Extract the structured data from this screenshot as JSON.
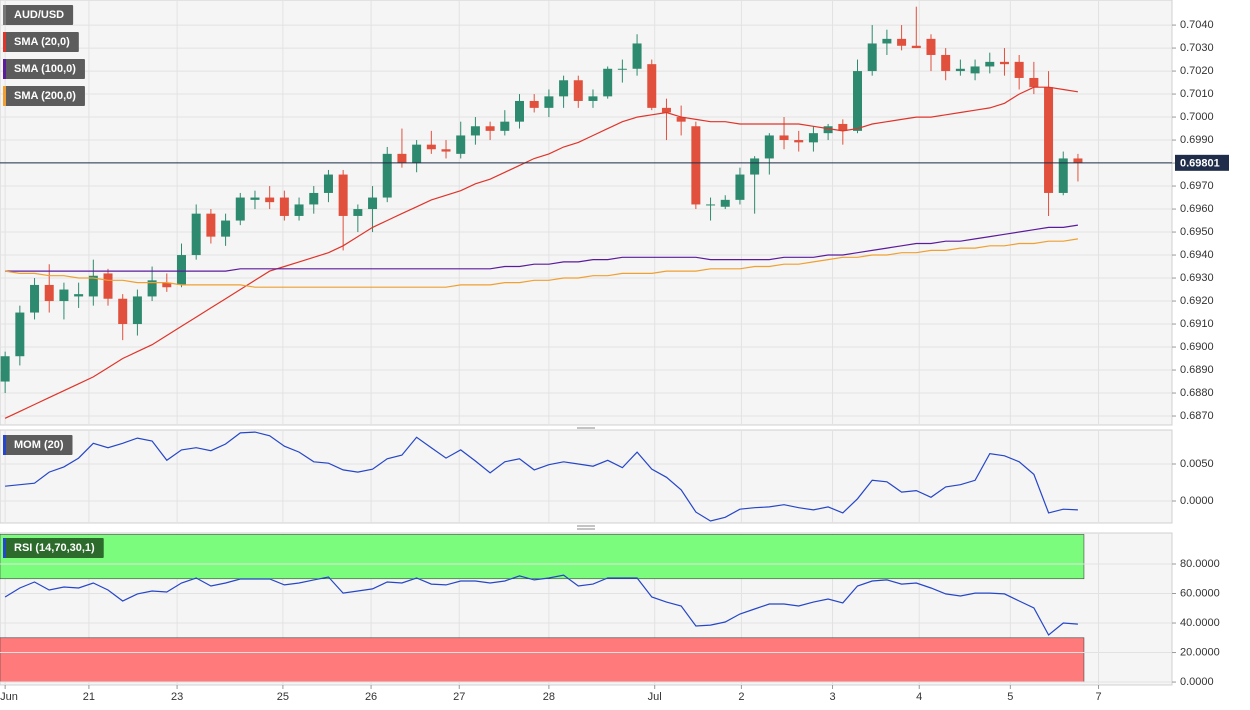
{
  "chart_data": [
    {
      "type": "candlestick",
      "xlim": [
        -0.35,
        79.4
      ],
      "ylim": [
        0.68661,
        0.70509
      ],
      "yticks": [
        {
          "value": 0.687,
          "label": "0.6870"
        },
        {
          "value": 0.688,
          "label": "0.6880"
        },
        {
          "value": 0.689,
          "label": "0.6890"
        },
        {
          "value": 0.69,
          "label": "0.6900"
        },
        {
          "value": 0.691,
          "label": "0.6910"
        },
        {
          "value": 0.692,
          "label": "0.6920"
        },
        {
          "value": 0.693,
          "label": "0.6930"
        },
        {
          "value": 0.694,
          "label": "0.6940"
        },
        {
          "value": 0.695,
          "label": "0.6950"
        },
        {
          "value": 0.696,
          "label": "0.6960"
        },
        {
          "value": 0.697,
          "label": "0.6970"
        },
        {
          "value": 0.698,
          "label": "0.6980"
        },
        {
          "value": 0.699,
          "label": "0.6990"
        },
        {
          "value": 0.7,
          "label": "0.7000"
        },
        {
          "value": 0.701,
          "label": "0.7010"
        },
        {
          "value": 0.702,
          "label": "0.7020"
        },
        {
          "value": 0.703,
          "label": "0.7030"
        },
        {
          "value": 0.704,
          "label": "0.7040"
        }
      ],
      "grid": true,
      "last_price": {
        "value": 0.69801,
        "label": "0.69801"
      },
      "series": [
        {
          "name": "AUD/USD",
          "up_color": "#2e8a6e",
          "down_color": "#e0503c",
          "color": "#777777",
          "open": [
            0.6885,
            0.6896,
            0.6915,
            0.6927,
            0.692,
            0.6922,
            0.6922,
            0.6932,
            0.6921,
            0.691,
            0.6922,
            0.6928,
            0.6927,
            0.694,
            0.6958,
            0.6948,
            0.6955,
            0.6964,
            0.6965,
            0.6965,
            0.6957,
            0.6962,
            0.6967,
            0.6975,
            0.6957,
            0.696,
            0.6965,
            0.6984,
            0.698,
            0.6988,
            0.6986,
            0.6984,
            0.6992,
            0.6996,
            0.6994,
            0.6998,
            0.7007,
            0.7004,
            0.7009,
            0.7016,
            0.7007,
            0.7009,
            0.7021,
            0.7021,
            0.7023,
            0.7004,
            0.7,
            0.6996,
            0.6962,
            0.6961,
            0.6964,
            0.6975,
            0.6982,
            0.6992,
            0.699,
            0.6989,
            0.6993,
            0.6997,
            0.6994,
            0.702,
            0.7032,
            0.7034,
            0.7031,
            0.7034,
            0.7027,
            0.702,
            0.7019,
            0.7022,
            0.7024,
            0.7024,
            0.7017,
            0.7013,
            0.6967,
            0.6982
          ],
          "high": [
            0.6898,
            0.6918,
            0.693,
            0.6936,
            0.6928,
            0.6928,
            0.6938,
            0.6934,
            0.6923,
            0.6925,
            0.6935,
            0.6932,
            0.6945,
            0.6962,
            0.696,
            0.6958,
            0.6967,
            0.6968,
            0.697,
            0.6968,
            0.6965,
            0.697,
            0.6977,
            0.6977,
            0.6962,
            0.697,
            0.6987,
            0.6995,
            0.699,
            0.6994,
            0.699,
            0.6998,
            0.7,
            0.6998,
            0.7003,
            0.701,
            0.701,
            0.7012,
            0.7018,
            0.7018,
            0.7012,
            0.7022,
            0.7025,
            0.7036,
            0.7025,
            0.7008,
            0.7005,
            0.6998,
            0.6965,
            0.6966,
            0.6978,
            0.6983,
            0.6993,
            0.7,
            0.6994,
            0.6996,
            0.6997,
            0.6999,
            0.7025,
            0.704,
            0.7038,
            0.704,
            0.7048,
            0.7036,
            0.703,
            0.7025,
            0.7025,
            0.7028,
            0.703,
            0.7027,
            0.7024,
            0.702,
            0.6985,
            0.6984
          ],
          "low": [
            0.688,
            0.6892,
            0.6912,
            0.6915,
            0.6912,
            0.6917,
            0.6918,
            0.6918,
            0.6903,
            0.6905,
            0.692,
            0.6924,
            0.6926,
            0.6938,
            0.6945,
            0.6944,
            0.6953,
            0.696,
            0.696,
            0.6955,
            0.6955,
            0.6958,
            0.6963,
            0.6942,
            0.695,
            0.695,
            0.6963,
            0.6978,
            0.6976,
            0.6984,
            0.6982,
            0.6982,
            0.6988,
            0.699,
            0.6992,
            0.6995,
            0.7002,
            0.7,
            0.7004,
            0.7004,
            0.7004,
            0.7008,
            0.7015,
            0.7018,
            0.7003,
            0.699,
            0.6992,
            0.696,
            0.6955,
            0.696,
            0.6962,
            0.6958,
            0.6975,
            0.6986,
            0.6985,
            0.6985,
            0.699,
            0.6988,
            0.6993,
            0.7018,
            0.7027,
            0.7029,
            0.703,
            0.702,
            0.7016,
            0.7018,
            0.7016,
            0.7019,
            0.7018,
            0.7012,
            0.701,
            0.6957,
            0.6966,
            0.6972
          ],
          "close": [
            0.6896,
            0.6915,
            0.6927,
            0.692,
            0.6925,
            0.6923,
            0.6931,
            0.6921,
            0.691,
            0.6922,
            0.6929,
            0.6926,
            0.694,
            0.6958,
            0.6948,
            0.6955,
            0.6965,
            0.6965,
            0.6963,
            0.6957,
            0.6962,
            0.6967,
            0.6975,
            0.6957,
            0.696,
            0.6965,
            0.6984,
            0.698,
            0.6988,
            0.6986,
            0.6985,
            0.6992,
            0.6996,
            0.6994,
            0.6998,
            0.7007,
            0.7004,
            0.7009,
            0.7016,
            0.7007,
            0.7009,
            0.7021,
            0.7021,
            0.7032,
            0.7004,
            0.7002,
            0.6998,
            0.6962,
            0.6962,
            0.6964,
            0.6975,
            0.6982,
            0.6992,
            0.699,
            0.6989,
            0.6993,
            0.6996,
            0.6994,
            0.702,
            0.7032,
            0.7034,
            0.7031,
            0.703,
            0.7027,
            0.702,
            0.7021,
            0.7022,
            0.7024,
            0.7023,
            0.7017,
            0.7013,
            0.6967,
            0.6982,
            0.698
          ]
        },
        {
          "name": "SMA (20,0)",
          "color": "#e0342a",
          "values": [
            0.6869,
            0.6872,
            0.6875,
            0.6878,
            0.6881,
            0.6884,
            0.6887,
            0.6891,
            0.6895,
            0.6898,
            0.6901,
            0.6905,
            0.6909,
            0.6913,
            0.6917,
            0.6921,
            0.6925,
            0.6929,
            0.6933,
            0.6935,
            0.6937,
            0.6939,
            0.6941,
            0.6944,
            0.6948,
            0.6952,
            0.6955,
            0.6958,
            0.6961,
            0.6964,
            0.6966,
            0.6968,
            0.6971,
            0.6973,
            0.6976,
            0.6979,
            0.6982,
            0.6984,
            0.6987,
            0.6989,
            0.6992,
            0.6995,
            0.6998,
            0.7,
            0.7001,
            0.7002,
            0.7,
            0.6999,
            0.6998,
            0.6998,
            0.6997,
            0.6997,
            0.6997,
            0.6997,
            0.6997,
            0.6996,
            0.6995,
            0.6994,
            0.6995,
            0.6997,
            0.6998,
            0.6999,
            0.7,
            0.7,
            0.7001,
            0.7002,
            0.7003,
            0.7004,
            0.7006,
            0.701,
            0.7013,
            0.7013,
            0.7012,
            0.7011
          ]
        },
        {
          "name": "SMA (100,0)",
          "color": "#5b1c9c",
          "values": [
            0.6933,
            0.6933,
            0.6933,
            0.6933,
            0.6933,
            0.6933,
            0.6933,
            0.6933,
            0.6933,
            0.6933,
            0.6933,
            0.6933,
            0.6933,
            0.6933,
            0.6933,
            0.6933,
            0.6934,
            0.6934,
            0.6934,
            0.6934,
            0.6934,
            0.6934,
            0.6934,
            0.6934,
            0.6934,
            0.6934,
            0.6934,
            0.6934,
            0.6934,
            0.6934,
            0.6934,
            0.6934,
            0.6934,
            0.6934,
            0.6935,
            0.6935,
            0.6936,
            0.6936,
            0.6937,
            0.6937,
            0.6938,
            0.6938,
            0.6939,
            0.6939,
            0.6939,
            0.6939,
            0.6939,
            0.6939,
            0.6938,
            0.6938,
            0.6938,
            0.6938,
            0.6938,
            0.6939,
            0.6939,
            0.6939,
            0.694,
            0.694,
            0.6941,
            0.6942,
            0.6943,
            0.6944,
            0.6945,
            0.6945,
            0.6946,
            0.6946,
            0.6947,
            0.6948,
            0.6949,
            0.695,
            0.6951,
            0.6952,
            0.6952,
            0.6953
          ]
        },
        {
          "name": "SMA (200,0)",
          "color": "#f0a030",
          "values": [
            0.6933,
            0.6932,
            0.6932,
            0.6931,
            0.6931,
            0.693,
            0.693,
            0.6929,
            0.6929,
            0.6928,
            0.6928,
            0.6928,
            0.6927,
            0.6927,
            0.6927,
            0.6927,
            0.6927,
            0.6926,
            0.6926,
            0.6926,
            0.6926,
            0.6926,
            0.6926,
            0.6926,
            0.6926,
            0.6926,
            0.6926,
            0.6926,
            0.6926,
            0.6926,
            0.6926,
            0.6927,
            0.6927,
            0.6927,
            0.6928,
            0.6928,
            0.6929,
            0.6929,
            0.693,
            0.693,
            0.6931,
            0.6931,
            0.6932,
            0.6932,
            0.6932,
            0.6933,
            0.6933,
            0.6933,
            0.6934,
            0.6934,
            0.6934,
            0.6935,
            0.6935,
            0.6936,
            0.6936,
            0.6937,
            0.6938,
            0.6939,
            0.6939,
            0.694,
            0.694,
            0.6941,
            0.6941,
            0.6942,
            0.6942,
            0.6943,
            0.6943,
            0.6944,
            0.6944,
            0.6945,
            0.6945,
            0.6946,
            0.6946,
            0.6947
          ]
        }
      ]
    },
    {
      "type": "line",
      "xlim": [
        -0.35,
        79.4
      ],
      "ylim": [
        -0.00297,
        0.00959
      ],
      "yticks": [
        {
          "value": 0,
          "label": "0.0000"
        },
        {
          "value": 0.005,
          "label": "0.0050"
        }
      ],
      "grid": true,
      "series": [
        {
          "name": "MOM (20)",
          "color": "#2546c8",
          "values": [
            0.002,
            0.0022,
            0.0024,
            0.0039,
            0.0046,
            0.0058,
            0.0078,
            0.0072,
            0.0078,
            0.0085,
            0.0081,
            0.0055,
            0.0069,
            0.0072,
            0.0068,
            0.0077,
            0.0092,
            0.0093,
            0.0088,
            0.0074,
            0.0066,
            0.0053,
            0.0051,
            0.0042,
            0.0039,
            0.0043,
            0.0057,
            0.0062,
            0.0086,
            0.0072,
            0.0058,
            0.0069,
            0.0054,
            0.0038,
            0.0053,
            0.0057,
            0.0042,
            0.0049,
            0.0053,
            0.005,
            0.0047,
            0.0055,
            0.0045,
            0.0066,
            0.0043,
            0.0032,
            0.0015,
            -0.0015,
            -0.0027,
            -0.0022,
            -0.0011,
            -0.0009,
            -0.0008,
            -0.0005,
            -0.0009,
            -0.0012,
            -0.0008,
            -0.0016,
            0.0003,
            0.0028,
            0.0026,
            0.0012,
            0.0014,
            0.0005,
            0.0019,
            0.0022,
            0.0028,
            0.0064,
            0.0061,
            0.0053,
            0.0036,
            -0.0016,
            -0.0011,
            -0.0012
          ]
        }
      ]
    },
    {
      "type": "line",
      "xlim": [
        -0.35,
        79.4
      ],
      "ylim": [
        -2,
        101
      ],
      "yticks": [
        {
          "value": 0,
          "label": "0.0000"
        },
        {
          "value": 20,
          "label": "20.0000"
        },
        {
          "value": 40,
          "label": "40.0000"
        },
        {
          "value": 60,
          "label": "60.0000"
        },
        {
          "value": 80,
          "label": "80.0000"
        }
      ],
      "xticks": [
        {
          "value": 0,
          "label": "Jun"
        },
        {
          "value": 5.7,
          "label": "21"
        },
        {
          "value": 11.7,
          "label": "23"
        },
        {
          "value": 18.9,
          "label": "25"
        },
        {
          "value": 24.9,
          "label": "26"
        },
        {
          "value": 30.9,
          "label": "27"
        },
        {
          "value": 37,
          "label": "28"
        },
        {
          "value": 44.2,
          "label": "Jul"
        },
        {
          "value": 50.1,
          "label": "2"
        },
        {
          "value": 56.3,
          "label": "3"
        },
        {
          "value": 62.2,
          "label": "4"
        },
        {
          "value": 68.4,
          "label": "5"
        },
        {
          "value": 74.4,
          "label": "7"
        }
      ],
      "grid": true,
      "bands": [
        {
          "from": 70,
          "to": 100,
          "color": "#7cfc7c"
        },
        {
          "from": 0,
          "to": 30,
          "color": "#ff7b7b"
        }
      ],
      "series": [
        {
          "name": "RSI (14,70,30,1)",
          "color": "#2546c8",
          "legend_color": "#2c6b2c",
          "values": [
            57.6,
            63.7,
            67.8,
            62.4,
            64.4,
            63.7,
            67.1,
            62.4,
            54.9,
            59.7,
            61.7,
            61.0,
            67.1,
            70.5,
            65.1,
            67.1,
            69.8,
            69.8,
            69.8,
            65.8,
            67.1,
            69.2,
            71.2,
            60.3,
            61.7,
            63.1,
            67.8,
            67.1,
            70.5,
            66.4,
            65.8,
            68.5,
            68.5,
            67.1,
            68.5,
            71.9,
            69.2,
            70.5,
            72.5,
            65.1,
            66.4,
            70.5,
            70.5,
            70.5,
            57.6,
            54.2,
            51.5,
            38.0,
            38.6,
            40.7,
            46.1,
            49.5,
            52.9,
            52.9,
            51.5,
            54.2,
            56.3,
            53.6,
            65.1,
            68.5,
            69.2,
            66.4,
            67.1,
            63.7,
            59.7,
            58.3,
            60.3,
            60.3,
            59.7,
            54.9,
            50.2,
            31.9,
            40.0,
            39.3
          ]
        }
      ]
    }
  ]
}
